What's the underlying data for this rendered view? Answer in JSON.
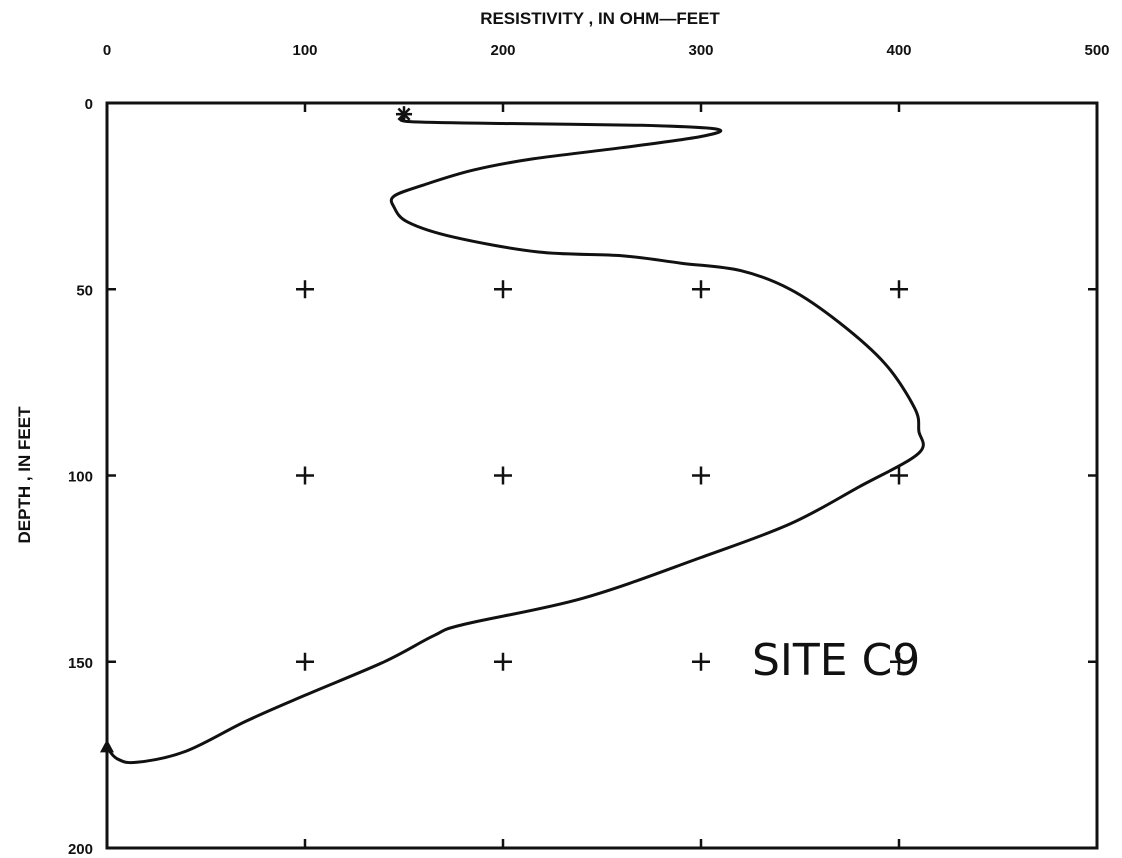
{
  "chart_data": {
    "type": "line",
    "title": "",
    "xlabel": "RESISTIVITY , IN OHM—FEET",
    "ylabel": "DEPTH , IN FEET",
    "x_axis_position": "top",
    "y_axis_inverted": true,
    "xlim": [
      0,
      500
    ],
    "ylim": [
      0,
      200
    ],
    "xticks": [
      0,
      100,
      200,
      300,
      400,
      500
    ],
    "yticks": [
      0,
      50,
      100,
      150,
      200
    ],
    "xtick_labels": [
      "0",
      "100",
      "200",
      "300",
      "400",
      "500"
    ],
    "ytick_labels": [
      "0",
      "50",
      "100",
      "150",
      "200"
    ],
    "grid": "plus-markers",
    "annotation": "SITE C9",
    "series": [
      {
        "points": [
          [
            150,
            4
          ],
          [
            153,
            5
          ],
          [
            200,
            5.5
          ],
          [
            270,
            6
          ],
          [
            308,
            7
          ],
          [
            300,
            9
          ],
          [
            260,
            12
          ],
          [
            215,
            15
          ],
          [
            185,
            18
          ],
          [
            160,
            22
          ],
          [
            145,
            25
          ],
          [
            145,
            28
          ],
          [
            152,
            32
          ],
          [
            175,
            36
          ],
          [
            218,
            40
          ],
          [
            260,
            41
          ],
          [
            290,
            43
          ],
          [
            320,
            45
          ],
          [
            345,
            50
          ],
          [
            370,
            59
          ],
          [
            393,
            70
          ],
          [
            408,
            82
          ],
          [
            410,
            88
          ],
          [
            410,
            94
          ],
          [
            380,
            103
          ],
          [
            345,
            113
          ],
          [
            300,
            122
          ],
          [
            240,
            133
          ],
          [
            180,
            140
          ],
          [
            165,
            143
          ],
          [
            140,
            150
          ],
          [
            100,
            159
          ],
          [
            70,
            166
          ],
          [
            40,
            174
          ],
          [
            15,
            177
          ],
          [
            5,
            176
          ],
          [
            0,
            173
          ]
        ]
      }
    ],
    "markers": [
      {
        "x": 150,
        "y": 3,
        "shape": "star"
      },
      {
        "x": 0,
        "y": 173,
        "shape": "triangle"
      }
    ]
  }
}
